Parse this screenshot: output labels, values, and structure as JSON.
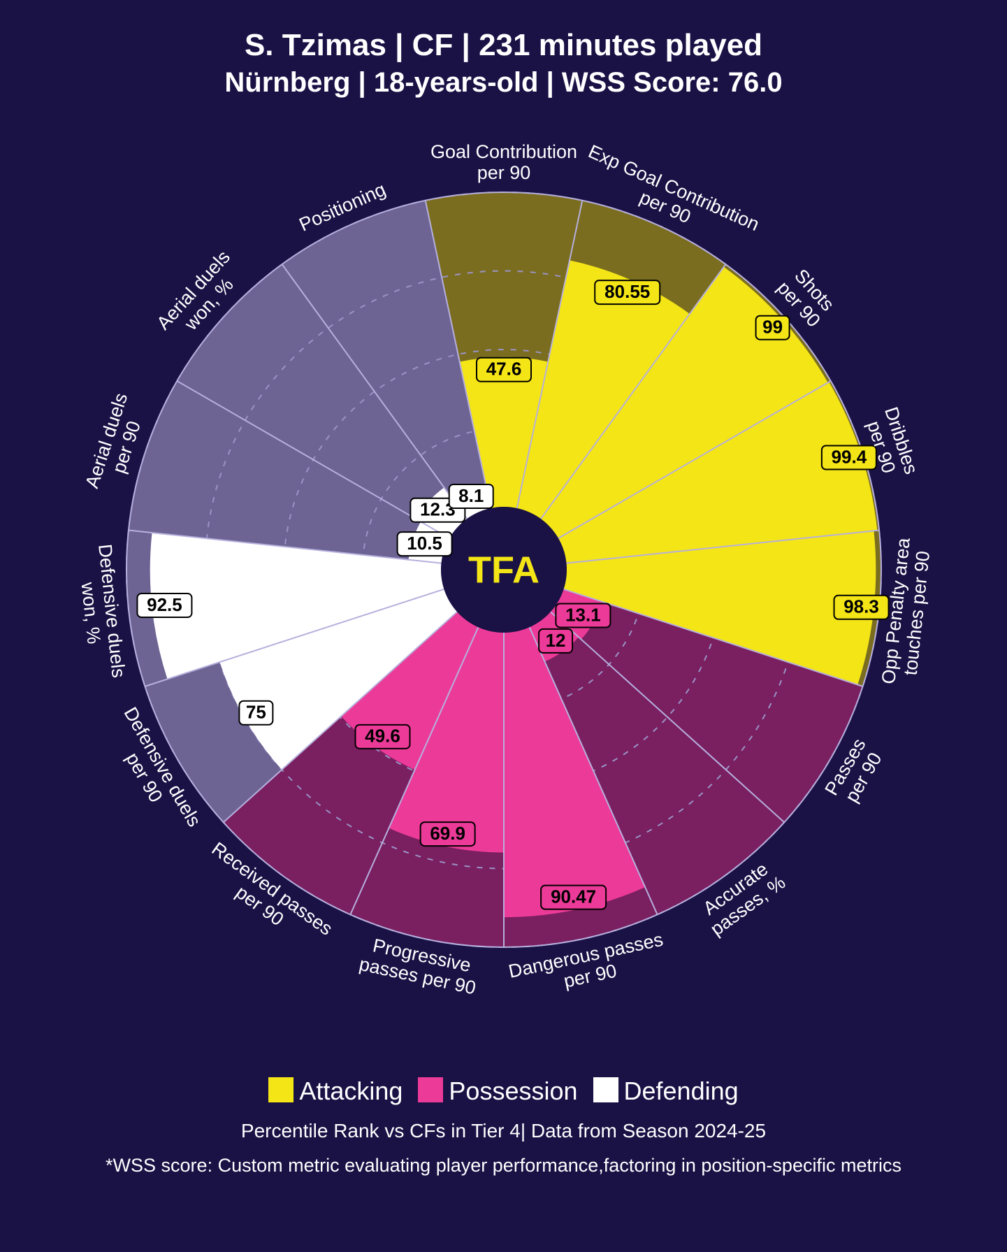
{
  "header": {
    "title_line1": "S. Tzimas | CF | 231 minutes played",
    "title_line2": "Nürnberg | 18-years-old | WSS Score: 76.0"
  },
  "chart": {
    "type": "radial-bar",
    "background_color": "#1a1145",
    "outer_radius": 540,
    "inner_radius": 90,
    "grid_rings": [
      25,
      50,
      75,
      100
    ],
    "grid_color": "#9a93c5",
    "grid_dash": "8 10",
    "sector_outline": "#b6b0dd",
    "center_fill": "#1a1145",
    "center_text": "TFA",
    "center_text_color": "#f4e516",
    "categories": {
      "Attacking": {
        "fill": "#f4e516",
        "bg_tint": "#7a6d20"
      },
      "Possession": {
        "fill": "#ec3a98",
        "bg_tint": "#7a1f60"
      },
      "Defending": {
        "fill": "#ffffff",
        "bg_tint": "#6d6494"
      }
    },
    "metrics": [
      {
        "label_lines": [
          "Goal Contribution",
          "per 90"
        ],
        "value": 47.6,
        "category": "Attacking"
      },
      {
        "label_lines": [
          "Exp Goal Contribution",
          "per 90"
        ],
        "value": 80.55,
        "category": "Attacking"
      },
      {
        "label_lines": [
          "Shots",
          "per 90"
        ],
        "value": 99.0,
        "category": "Attacking"
      },
      {
        "label_lines": [
          "Dribbles",
          "per 90"
        ],
        "value": 99.4,
        "category": "Attacking"
      },
      {
        "label_lines": [
          "Opp Penalty area",
          "touches per 90"
        ],
        "value": 98.3,
        "category": "Attacking"
      },
      {
        "label_lines": [
          "Passes",
          "per 90"
        ],
        "value": 13.1,
        "category": "Possession"
      },
      {
        "label_lines": [
          "Accurate",
          "passes, %"
        ],
        "value": 12.0,
        "category": "Possession"
      },
      {
        "label_lines": [
          "Dangerous passes",
          "per 90"
        ],
        "value": 90.47,
        "category": "Possession"
      },
      {
        "label_lines": [
          "Progressive",
          "passes per 90"
        ],
        "value": 69.9,
        "category": "Possession"
      },
      {
        "label_lines": [
          "Received passes",
          "per 90"
        ],
        "value": 49.6,
        "category": "Possession"
      },
      {
        "label_lines": [
          "Defensive duels",
          "per 90"
        ],
        "value": 75.0,
        "category": "Defending"
      },
      {
        "label_lines": [
          "Defensive duels",
          "won, %"
        ],
        "value": 92.5,
        "category": "Defending"
      },
      {
        "label_lines": [
          "Aerial duels",
          "per 90"
        ],
        "value": 10.5,
        "category": "Defending"
      },
      {
        "label_lines": [
          "Aerial duels",
          "won, %"
        ],
        "value": 12.3,
        "category": "Defending"
      },
      {
        "label_lines": [
          "Positioning"
        ],
        "value": 8.1,
        "category": "Defending"
      }
    ]
  },
  "legend": {
    "items": [
      {
        "label": "Attacking",
        "color": "#f4e516"
      },
      {
        "label": "Possession",
        "color": "#ec3a98"
      },
      {
        "label": "Defending",
        "color": "#ffffff"
      }
    ],
    "caption1": "Percentile Rank vs CFs in Tier 4| Data from Season 2024-25",
    "caption2": "*WSS score: Custom metric evaluating player performance,factoring in position-specific metrics"
  },
  "typography": {
    "title_fontsize": 44,
    "subtitle_fontsize": 40,
    "metric_label_fontsize": 27,
    "value_label_fontsize": 26,
    "legend_fontsize": 36,
    "caption_fontsize": 27
  }
}
